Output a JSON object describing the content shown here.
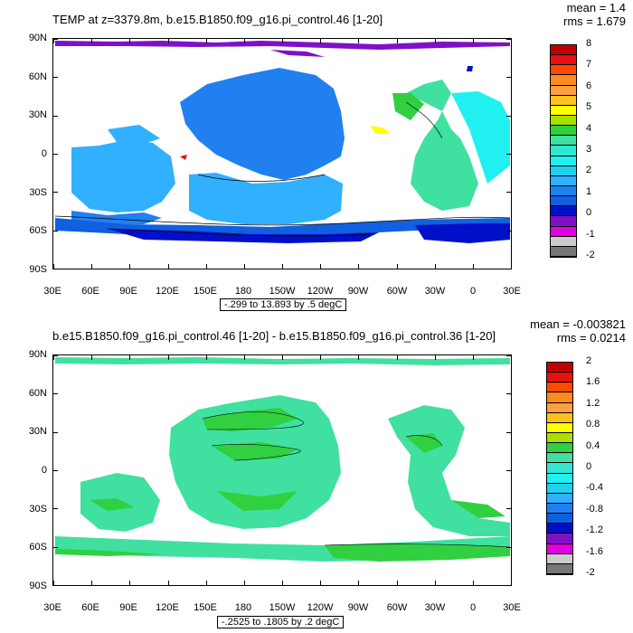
{
  "panels": [
    {
      "title": "TEMP at z=3379.8m, b.e15.B1850.f09_g16.pi_control.46 [1-20]",
      "mean": "mean = 1.4",
      "rms": "rms = 1.679",
      "range": "-.299 to 13.893 by .5 degC",
      "lat_labels": [
        "90N",
        "60N",
        "30N",
        "0",
        "30S",
        "60S",
        "90S"
      ],
      "lon_labels": [
        "30E",
        "60E",
        "90E",
        "120E",
        "150E",
        "180",
        "150W",
        "120W",
        "90W",
        "60W",
        "30W",
        "0",
        "30E"
      ],
      "colorbar": {
        "labels": [
          "8",
          "7",
          "6",
          "5",
          "4",
          "3",
          "2",
          "1",
          "0",
          "-1",
          "-2"
        ],
        "colors": [
          "#c00000",
          "#e81010",
          "#ff4a00",
          "#ff8a20",
          "#ffa040",
          "#ffc020",
          "#ffff00",
          "#a8e000",
          "#30d040",
          "#40e0a0",
          "#30e8d0",
          "#20f0f0",
          "#20d0f0",
          "#30b0ff",
          "#2080f0",
          "#1060e0",
          "#0010c8",
          "#8010c8",
          "#e000e0",
          "#cccccc",
          "#777777"
        ]
      }
    },
    {
      "title": "b.e15.B1850.f09_g16.pi_control.46 [1-20] - b.e15.B1850.f09_g16.pi_control.36 [1-20]",
      "mean": "mean = -0.003821",
      "rms": "rms = 0.0214",
      "range": "-.2525 to .1805 by .2 degC",
      "lat_labels": [
        "90N",
        "60N",
        "30N",
        "0",
        "30S",
        "60S",
        "90S"
      ],
      "lon_labels": [
        "30E",
        "60E",
        "90E",
        "120E",
        "150E",
        "180",
        "150W",
        "120W",
        "90W",
        "60W",
        "30W",
        "0",
        "30E"
      ],
      "colorbar": {
        "labels": [
          "2",
          "1.6",
          "1.2",
          "0.8",
          "0.4",
          "0",
          "-0.4",
          "-0.8",
          "-1.2",
          "-1.6",
          "-2"
        ],
        "colors": [
          "#c00000",
          "#e81010",
          "#ff4a00",
          "#ff8a20",
          "#ffa040",
          "#ffc020",
          "#ffff00",
          "#a8e000",
          "#30d040",
          "#40e0a0",
          "#30e8d0",
          "#20f0f0",
          "#20d0f0",
          "#30b0ff",
          "#2080f0",
          "#1060e0",
          "#0010c8",
          "#8010c8",
          "#e000e0",
          "#cccccc",
          "#777777"
        ]
      }
    }
  ]
}
